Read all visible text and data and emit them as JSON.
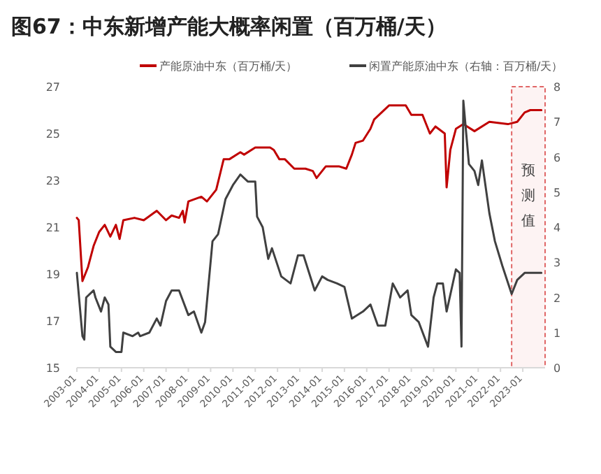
{
  "chart_data": {
    "type": "line",
    "title": "图67：中东新增产能大概率闲置（百万桶/天）",
    "xlim": [
      "2003-01",
      "2024-01"
    ],
    "xticks": [
      "2003-01",
      "2004-01",
      "2005-01",
      "2006-01",
      "2007-01",
      "2008-01",
      "2009-01",
      "2010-01",
      "2011-01",
      "2012-01",
      "2013-01",
      "2014-01",
      "2015-01",
      "2016-01",
      "2017-01",
      "2018-01",
      "2019-01",
      "2020-01",
      "2021-01",
      "2022-01",
      "2023-01"
    ],
    "ylim": [
      15,
      27
    ],
    "yticks": [
      15,
      17,
      19,
      21,
      23,
      25,
      27
    ],
    "y2lim": [
      0,
      8
    ],
    "y2ticks": [
      0,
      1,
      2,
      3,
      4,
      5,
      6,
      7,
      8
    ],
    "legend": "top",
    "grid": false,
    "bands": [
      {
        "axis": "x",
        "from": "2022-07",
        "to": "2024-01",
        "label": "预测值",
        "color": "#e06666"
      }
    ],
    "series": [
      {
        "name": "产能原油中东（百万桶/天）",
        "color": "#c00000",
        "x": [
          "2003-01",
          "2003-02",
          "2003-04",
          "2003-07",
          "2003-10",
          "2004-01",
          "2004-04",
          "2004-07",
          "2004-10",
          "2004-12",
          "2005-02",
          "2005-08",
          "2006-01",
          "2006-08",
          "2007-01",
          "2007-04",
          "2007-08",
          "2007-10",
          "2007-11",
          "2008-01",
          "2008-08",
          "2008-11",
          "2009-04",
          "2009-08",
          "2009-11",
          "2010-05",
          "2010-07",
          "2011-01",
          "2011-09",
          "2011-11",
          "2012-02",
          "2012-05",
          "2012-10",
          "2013-04",
          "2013-08",
          "2013-10",
          "2014-03",
          "2014-10",
          "2015-02",
          "2015-05",
          "2015-07",
          "2015-11",
          "2016-03",
          "2016-05",
          "2017-01",
          "2017-10",
          "2018-01",
          "2018-07",
          "2018-10",
          "2018-11",
          "2019-02",
          "2019-07",
          "2019-08",
          "2019-10",
          "2020-01",
          "2020-05",
          "2020-11",
          "2021-07",
          "2022-05",
          "2022-10",
          "2023-02",
          "2023-05",
          "2023-11"
        ],
        "values": [
          21.4,
          21.3,
          18.7,
          19.3,
          20.2,
          20.8,
          21.1,
          20.6,
          21.1,
          20.5,
          21.3,
          21.4,
          21.3,
          21.7,
          21.3,
          21.5,
          21.4,
          21.7,
          21.2,
          22.1,
          22.3,
          22.1,
          22.6,
          23.9,
          23.9,
          24.2,
          24.1,
          24.4,
          24.4,
          24.3,
          23.9,
          23.9,
          23.5,
          23.5,
          23.4,
          23.1,
          23.6,
          23.6,
          23.5,
          24.1,
          24.6,
          24.7,
          25.2,
          25.6,
          26.2,
          26.2,
          25.8,
          25.8,
          25.2,
          25.0,
          25.3,
          25.0,
          22.7,
          24.3,
          25.2,
          25.4,
          25.1,
          25.5,
          25.4,
          25.5,
          25.9,
          26.0,
          26.0
        ]
      },
      {
        "name": "闲置产能原油中东（右轴：百万桶/天）",
        "color": "#404040",
        "axis": "y2",
        "x": [
          "2003-01",
          "2003-04",
          "2003-05",
          "2003-06",
          "2003-10",
          "2003-11",
          "2004-02",
          "2004-04",
          "2004-06",
          "2004-07",
          "2004-10",
          "2005-01",
          "2005-02",
          "2005-07",
          "2005-10",
          "2005-11",
          "2006-04",
          "2006-08",
          "2006-10",
          "2007-01",
          "2007-04",
          "2007-08",
          "2008-01",
          "2008-04",
          "2008-08",
          "2008-10",
          "2009-02",
          "2009-05",
          "2009-09",
          "2010-01",
          "2010-05",
          "2010-09",
          "2011-01",
          "2011-02",
          "2011-05",
          "2011-08",
          "2011-10",
          "2012-03",
          "2012-08",
          "2012-12",
          "2013-03",
          "2013-09",
          "2014-01",
          "2014-04",
          "2014-09",
          "2015-01",
          "2015-05",
          "2015-11",
          "2016-03",
          "2016-07",
          "2016-11",
          "2017-03",
          "2017-07",
          "2017-11",
          "2018-01",
          "2018-05",
          "2018-10",
          "2019-01",
          "2019-03",
          "2019-06",
          "2019-08",
          "2020-01",
          "2020-03",
          "2020-04",
          "2020-05",
          "2020-08",
          "2020-11",
          "2021-01",
          "2021-03",
          "2021-07",
          "2021-10",
          "2022-02",
          "2022-07",
          "2022-10",
          "2023-02",
          "2023-11"
        ],
        "values": [
          2.7,
          0.9,
          0.8,
          2.0,
          2.2,
          2.0,
          1.6,
          2.0,
          1.8,
          0.6,
          0.45,
          0.45,
          1.0,
          0.9,
          1.0,
          0.9,
          1.0,
          1.4,
          1.2,
          1.9,
          2.2,
          2.2,
          1.5,
          1.6,
          1.0,
          1.3,
          3.6,
          3.8,
          4.8,
          5.2,
          5.5,
          5.3,
          5.3,
          4.3,
          4.0,
          3.1,
          3.4,
          2.6,
          2.4,
          3.2,
          3.2,
          2.2,
          2.6,
          2.5,
          2.4,
          2.3,
          1.4,
          1.6,
          1.8,
          1.2,
          1.2,
          2.4,
          2.0,
          2.2,
          1.5,
          1.3,
          0.6,
          2.0,
          2.4,
          2.4,
          1.6,
          2.8,
          2.7,
          0.6,
          7.6,
          5.8,
          5.6,
          5.2,
          5.9,
          4.4,
          3.6,
          2.9,
          2.1,
          2.5,
          2.7,
          2.7
        ]
      }
    ]
  }
}
